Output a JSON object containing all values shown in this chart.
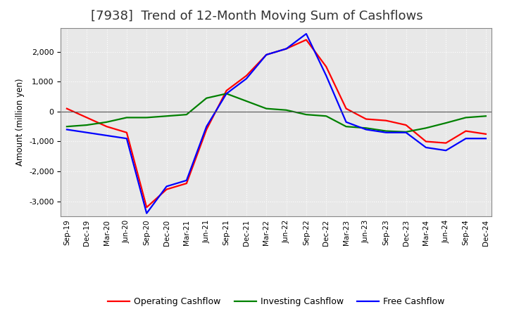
{
  "title": "[7938]  Trend of 12-Month Moving Sum of Cashflows",
  "ylabel": "Amount (million yen)",
  "x_labels": [
    "Sep-19",
    "Dec-19",
    "Mar-20",
    "Jun-20",
    "Sep-20",
    "Dec-20",
    "Mar-21",
    "Jun-21",
    "Sep-21",
    "Dec-21",
    "Mar-22",
    "Jun-22",
    "Sep-22",
    "Dec-22",
    "Mar-23",
    "Jun-23",
    "Sep-23",
    "Dec-23",
    "Mar-24",
    "Jun-24",
    "Sep-24",
    "Dec-24"
  ],
  "operating": [
    100,
    -200,
    -500,
    -700,
    -3200,
    -2600,
    -2400,
    -600,
    700,
    1200,
    1900,
    2100,
    2400,
    1500,
    100,
    -250,
    -300,
    -450,
    -1000,
    -1050,
    -650,
    -750
  ],
  "investing": [
    -500,
    -450,
    -350,
    -200,
    -200,
    -150,
    -100,
    450,
    600,
    350,
    100,
    50,
    -100,
    -150,
    -500,
    -550,
    -650,
    -680,
    -550,
    -380,
    -200,
    -150
  ],
  "free": [
    -600,
    -700,
    -800,
    -900,
    -3400,
    -2500,
    -2300,
    -500,
    600,
    1100,
    1900,
    2100,
    2600,
    1200,
    -350,
    -600,
    -700,
    -700,
    -1200,
    -1300,
    -900,
    -900
  ],
  "operating_color": "#ff0000",
  "investing_color": "#008000",
  "free_color": "#0000ff",
  "ylim": [
    -3500,
    2800
  ],
  "yticks": [
    -3000,
    -2000,
    -1000,
    0,
    1000,
    2000
  ],
  "plot_bg_color": "#e8e8e8",
  "fig_bg_color": "#ffffff",
  "grid_color": "#ffffff",
  "title_fontsize": 13,
  "title_color": "#333333",
  "legend_labels": [
    "Operating Cashflow",
    "Investing Cashflow",
    "Free Cashflow"
  ]
}
